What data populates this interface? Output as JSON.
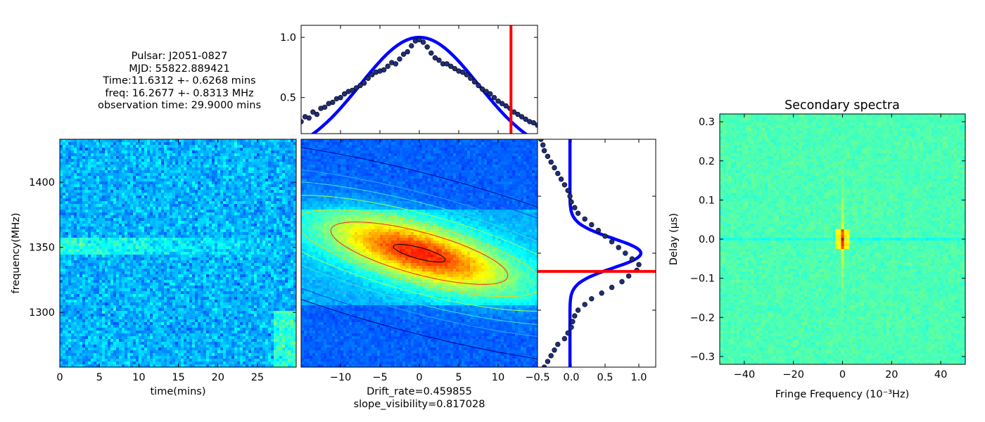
{
  "info_lines": [
    "Pulsar: J2051-0827",
    "MJD: 55822.889421",
    "Time:11.6312 +- 0.6268 mins",
    "freq: 16.2677 +- 0.8313 MHz",
    "observation time: 29.9000 mins"
  ],
  "colors": {
    "fit_line": "#0000ff",
    "marker": "#ff0000",
    "points": "#1f2e7a"
  },
  "chart_data": [
    {
      "id": "dynamic-spectrum",
      "type": "heatmap",
      "colormap": "jet",
      "xlabel": "time(mins)",
      "ylabel": "frequency(MHz)",
      "xlim": [
        0,
        29.9
      ],
      "ylim": [
        1258,
        1433
      ],
      "xticks": [
        0,
        5,
        10,
        15,
        20,
        25
      ],
      "yticks": [
        1300,
        1350,
        1400
      ],
      "xtick_labels": [
        "0",
        "5",
        "10",
        "15",
        "20",
        "25"
      ],
      "ytick_labels": [
        "1300",
        "1350",
        "1400"
      ],
      "grid": false
    },
    {
      "id": "acf-2d",
      "type": "heatmap",
      "colormap": "jet",
      "xlabel": "Drift_rate=0.459855",
      "xlabel2": "slope_visibility=0.817028",
      "xlim": [
        -15,
        15
      ],
      "ylim": [
        -1,
        1
      ],
      "xticks": [
        -10,
        -5,
        0,
        5,
        10
      ],
      "xtick_labels": [
        "−10",
        "−5",
        "0",
        "5",
        "10"
      ],
      "contour_colors": [
        "#000000",
        "#ff2020",
        "#ffd000",
        "#a0ff60",
        "#40e0d0",
        "#30a0ff",
        "#2040ff",
        "#000080"
      ]
    },
    {
      "id": "time-acf-cut",
      "type": "scatter",
      "xlim": [
        -15,
        15
      ],
      "ylim": [
        0.2,
        1.1
      ],
      "yticks": [
        0.5,
        1.0
      ],
      "ytick_labels": [
        "0.5",
        "1.0"
      ],
      "marker_x": 11.6312,
      "points": {
        "x": [
          -15,
          -14.5,
          -14,
          -13.5,
          -13,
          -12.5,
          -12,
          -11.5,
          -11,
          -10.5,
          -10,
          -9.5,
          -9,
          -8.5,
          -8,
          -7.5,
          -7,
          -6.5,
          -6,
          -5.5,
          -5,
          -4.5,
          -4,
          -3.5,
          -3,
          -2.5,
          -2,
          -1.5,
          -1,
          -0.5,
          0,
          0.5,
          1,
          1.5,
          2,
          2.5,
          3,
          3.5,
          4,
          4.5,
          5,
          5.5,
          6,
          6.5,
          7,
          7.5,
          8,
          8.5,
          9,
          9.5,
          10,
          10.5,
          11,
          11.5,
          12,
          12.5,
          13,
          13.5,
          14,
          14.5,
          15
        ],
        "y": [
          0.3,
          0.34,
          0.33,
          0.38,
          0.36,
          0.41,
          0.42,
          0.45,
          0.46,
          0.49,
          0.5,
          0.53,
          0.55,
          0.56,
          0.58,
          0.6,
          0.62,
          0.66,
          0.69,
          0.71,
          0.72,
          0.73,
          0.76,
          0.79,
          0.78,
          0.82,
          0.86,
          0.88,
          0.93,
          0.97,
          0.98,
          0.96,
          0.92,
          0.87,
          0.83,
          0.81,
          0.78,
          0.78,
          0.76,
          0.74,
          0.72,
          0.71,
          0.69,
          0.66,
          0.63,
          0.6,
          0.57,
          0.55,
          0.53,
          0.5,
          0.47,
          0.45,
          0.43,
          0.41,
          0.38,
          0.36,
          0.34,
          0.32,
          0.3,
          0.29,
          0.27
        ]
      },
      "fit": {
        "type": "gaussian",
        "sigma": 7.5,
        "baseline": 0.0,
        "amplitude": 1.0
      }
    },
    {
      "id": "freq-acf-cut",
      "type": "scatter",
      "xlim": [
        -0.5,
        1.25
      ],
      "xticks": [
        -0.5,
        0.0,
        0.5,
        1.0
      ],
      "xtick_labels": [
        "−0.5",
        "0.0",
        "0.5",
        "1.0"
      ],
      "marker_y": -0.16,
      "ylim": [
        -1,
        1
      ],
      "points": {
        "y": [
          -1.0,
          -0.95,
          -0.9,
          -0.85,
          -0.8,
          -0.75,
          -0.7,
          -0.65,
          -0.6,
          -0.55,
          -0.5,
          -0.45,
          -0.4,
          -0.35,
          -0.3,
          -0.25,
          -0.2,
          -0.15,
          -0.1,
          -0.05,
          0.0,
          0.05,
          0.1,
          0.15,
          0.2,
          0.25,
          0.3,
          0.35,
          0.4,
          0.45,
          0.5,
          0.55,
          0.6,
          0.65,
          0.7,
          0.75,
          0.8,
          0.85,
          0.9,
          0.95,
          1.0
        ],
        "x": [
          -0.4,
          -0.35,
          -0.3,
          -0.25,
          -0.2,
          -0.1,
          -0.05,
          0.0,
          0.02,
          0.05,
          0.1,
          0.2,
          0.3,
          0.45,
          0.6,
          0.75,
          0.85,
          0.97,
          1.0,
          0.9,
          0.8,
          0.7,
          0.6,
          0.5,
          0.4,
          0.3,
          0.2,
          0.1,
          0.05,
          0.0,
          -0.02,
          -0.05,
          -0.1,
          -0.15,
          -0.2,
          -0.25,
          -0.3,
          -0.35,
          -0.4,
          -0.42,
          -0.45
        ]
      }
    },
    {
      "id": "secondary-spectra",
      "type": "heatmap",
      "colormap": "jet",
      "title": "Secondary spectra",
      "xlabel": "Fringe Frequency (10⁻³Hz)",
      "ylabel": "Delay (μs)",
      "xlim": [
        -50,
        50
      ],
      "ylim": [
        -0.32,
        0.32
      ],
      "xticks": [
        -40,
        -20,
        0,
        20,
        40
      ],
      "xtick_labels": [
        "−40",
        "−20",
        "0",
        "20",
        "40"
      ],
      "yticks": [
        -0.3,
        -0.2,
        -0.1,
        0.0,
        0.1,
        0.2,
        0.3
      ],
      "ytick_labels": [
        "−0.3",
        "−0.2",
        "−0.1",
        "0.0",
        "0.1",
        "0.2",
        "0.3"
      ]
    }
  ]
}
